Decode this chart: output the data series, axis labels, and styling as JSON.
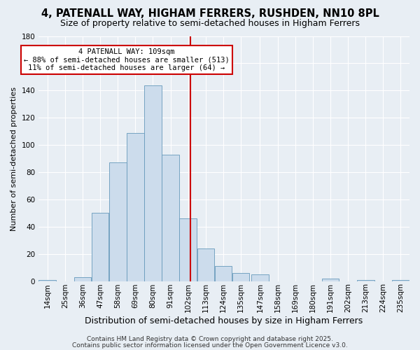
{
  "title": "4, PATENALL WAY, HIGHAM FERRERS, RUSHDEN, NN10 8PL",
  "subtitle": "Size of property relative to semi-detached houses in Higham Ferrers",
  "xlabel": "Distribution of semi-detached houses by size in Higham Ferrers",
  "ylabel": "Number of semi-detached properties",
  "bin_labels": [
    "14sqm",
    "25sqm",
    "36sqm",
    "47sqm",
    "58sqm",
    "69sqm",
    "80sqm",
    "91sqm",
    "102sqm",
    "113sqm",
    "124sqm",
    "135sqm",
    "147sqm",
    "158sqm",
    "169sqm",
    "180sqm",
    "191sqm",
    "202sqm",
    "213sqm",
    "224sqm",
    "235sqm"
  ],
  "bin_edges": [
    14,
    25,
    36,
    47,
    58,
    69,
    80,
    91,
    102,
    113,
    124,
    135,
    147,
    158,
    169,
    180,
    191,
    202,
    213,
    224,
    235
  ],
  "bar_heights": [
    1,
    0,
    3,
    50,
    87,
    109,
    144,
    93,
    46,
    24,
    11,
    6,
    5,
    0,
    0,
    0,
    2,
    0,
    1,
    0,
    1
  ],
  "bar_color": "#ccdcec",
  "bar_edge_color": "#6699bb",
  "vline_x": 109,
  "vline_color": "#cc0000",
  "ylim": [
    0,
    180
  ],
  "yticks": [
    0,
    20,
    40,
    60,
    80,
    100,
    120,
    140,
    160,
    180
  ],
  "annotation_title": "4 PATENALL WAY: 109sqm",
  "annotation_line1": "← 88% of semi-detached houses are smaller (513)",
  "annotation_line2": "11% of semi-detached houses are larger (64) →",
  "annotation_box_facecolor": "#ffffff",
  "annotation_box_edgecolor": "#cc0000",
  "footer1": "Contains HM Land Registry data © Crown copyright and database right 2025.",
  "footer2": "Contains public sector information licensed under the Open Government Licence v3.0.",
  "bg_color": "#e8eef4",
  "grid_color": "#ffffff",
  "title_fontsize": 10.5,
  "subtitle_fontsize": 9,
  "xlabel_fontsize": 9,
  "ylabel_fontsize": 8,
  "tick_fontsize": 7.5,
  "footer_fontsize": 6.5
}
